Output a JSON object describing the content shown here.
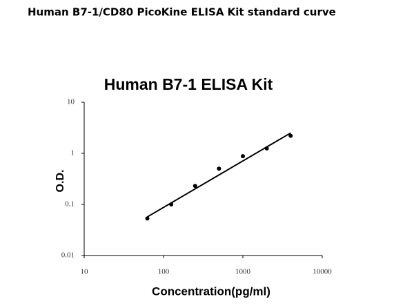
{
  "chart_data": {
    "type": "scatter",
    "heading": "Human B7-1/CD80 PicoKine ELISA Kit standard curve",
    "title": "Human B7-1 ELISA Kit",
    "x_label": "Concentration(pg/ml)",
    "y_label": "O.D.",
    "log_x": true,
    "log_y": true,
    "xlim": [
      10,
      10000
    ],
    "ylim": [
      0.01,
      10
    ],
    "xticks": [
      10,
      100,
      1000,
      10000
    ],
    "yticks": [
      0.01,
      0.1,
      1,
      10
    ],
    "x": [
      62.5,
      125,
      250,
      500,
      1000,
      2000,
      4000
    ],
    "values": [
      0.053,
      0.1,
      0.23,
      0.5,
      0.88,
      1.25,
      2.2
    ],
    "color": "#000000",
    "fit": {
      "x": [
        62.5,
        4000
      ],
      "values": [
        0.057,
        2.5
      ]
    }
  }
}
